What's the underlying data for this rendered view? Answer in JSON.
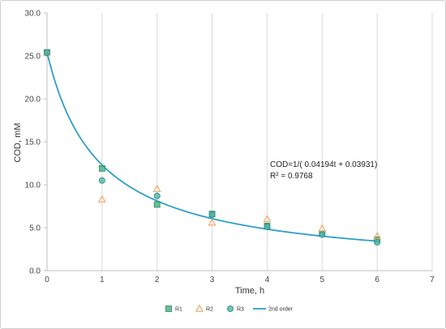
{
  "chart_data": {
    "type": "scatter",
    "xlabel": "Time, h",
    "ylabel": "COD, mM",
    "xlim": [
      0,
      7
    ],
    "ylim": [
      0,
      30
    ],
    "x_ticks": [
      "0",
      "1",
      "2",
      "3",
      "4",
      "5",
      "6",
      "7"
    ],
    "y_ticks": [
      "0.0",
      "5.0",
      "10.0",
      "15.0",
      "20.0",
      "25.0",
      "30.0"
    ],
    "grid": "vertical",
    "legend_position": "bottom",
    "series": [
      {
        "name": "R1",
        "marker": "square",
        "color": "#3aaa7a",
        "x": [
          0,
          1,
          2,
          3,
          4,
          5,
          6
        ],
        "y": [
          25.4,
          11.9,
          7.7,
          6.6,
          5.2,
          4.3,
          3.6
        ]
      },
      {
        "name": "R2",
        "marker": "triangle",
        "color": "#f4a460",
        "x": [
          0,
          1,
          2,
          3,
          4,
          5,
          6
        ],
        "y": [
          25.4,
          8.3,
          9.5,
          5.6,
          6.0,
          4.9,
          4.0
        ]
      },
      {
        "name": "R3",
        "marker": "circle",
        "color": "#4fb3a8",
        "x": [
          0,
          1,
          2,
          3,
          4,
          5,
          6
        ],
        "y": [
          25.4,
          10.5,
          8.7,
          6.5,
          5.1,
          4.2,
          3.3
        ]
      },
      {
        "name": "2nd order",
        "marker": "line",
        "color": "#2e9fc9",
        "model": {
          "a": 0.04194,
          "b": 0.03931
        }
      }
    ],
    "annotation": {
      "equation": "COD=1/( 0.04194t + 0.03931)",
      "r2": "R² = 0.9768"
    }
  }
}
